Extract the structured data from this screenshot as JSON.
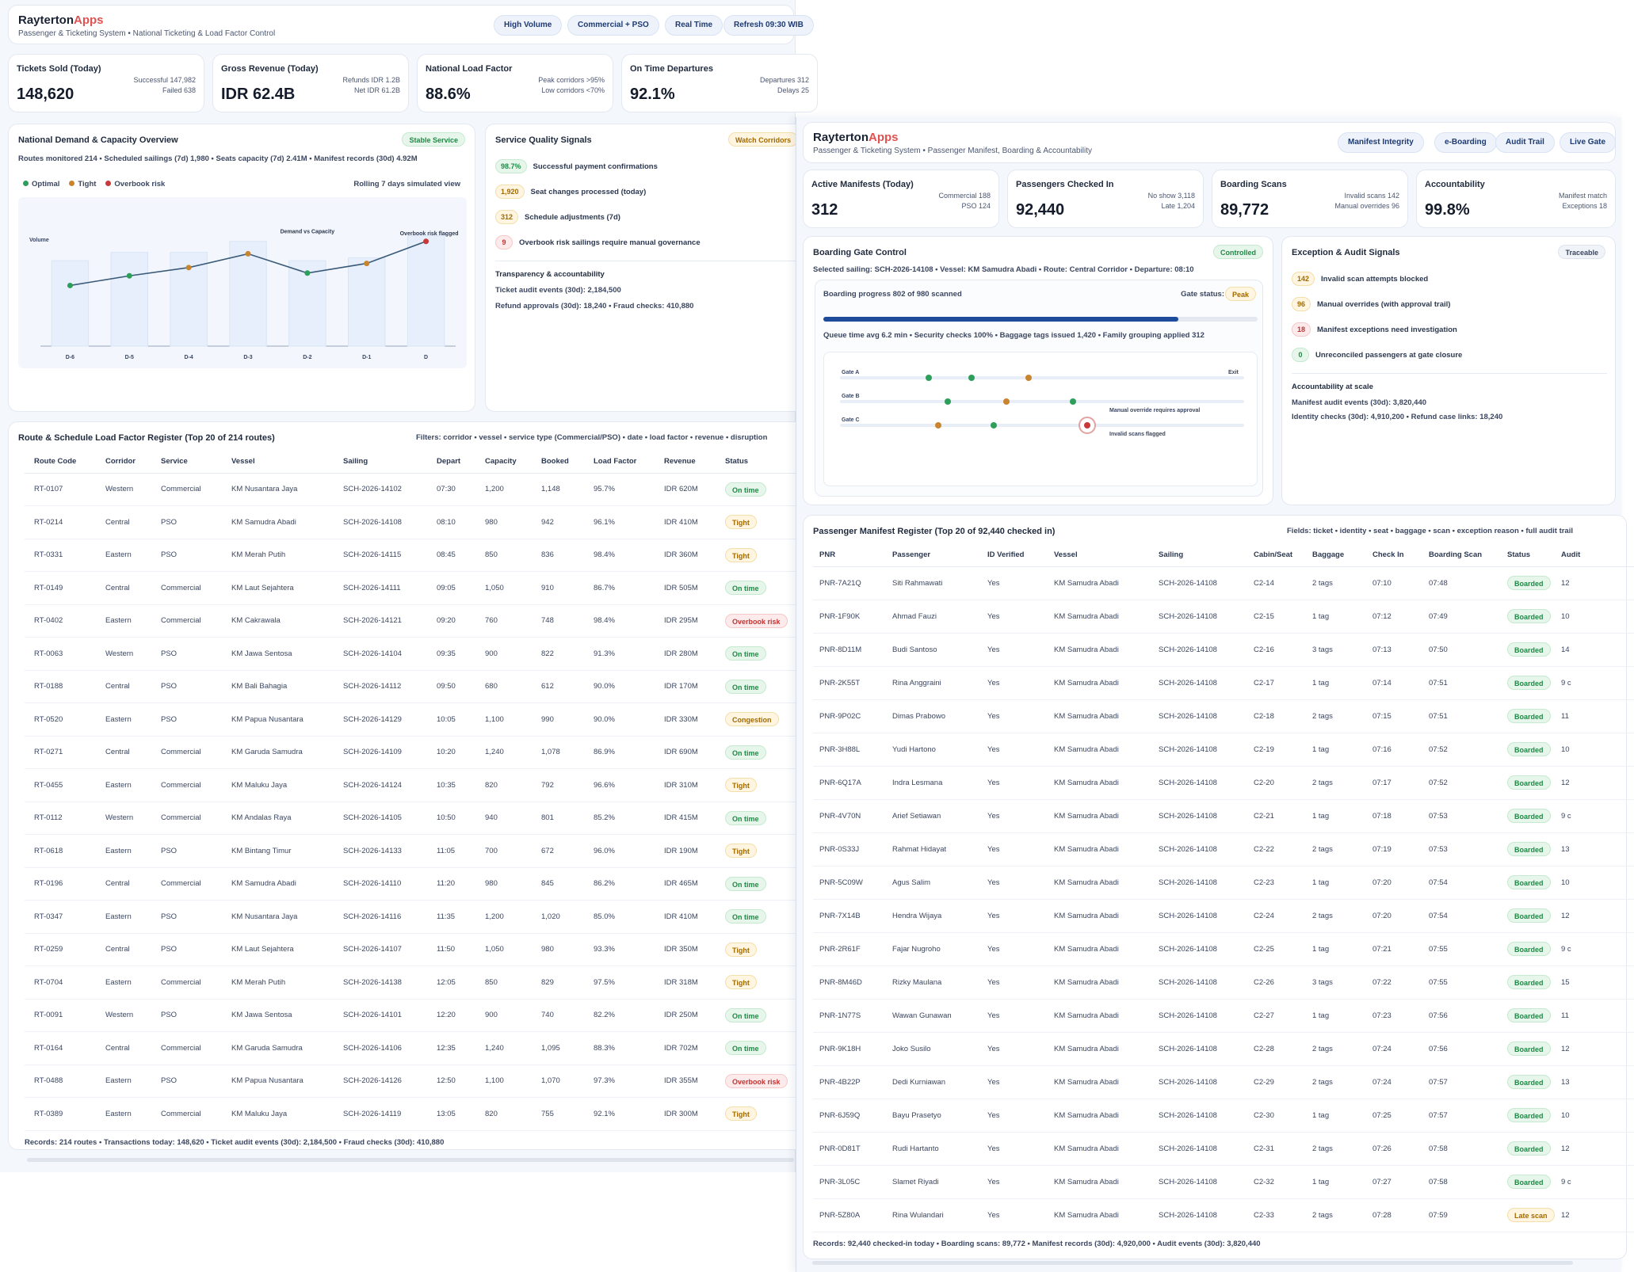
{
  "left": {
    "brand": {
      "name": "Rayterton",
      "accent": "Apps"
    },
    "subtitle": "Passenger & Ticketing System • National Ticketing & Load Factor Control",
    "chips": [
      "High Volume",
      "Commercial + PSO",
      "Real Time",
      "Refresh 09:30 WIB"
    ],
    "kpis": [
      {
        "label": "Tickets Sold (Today)",
        "value": "148,620",
        "meta1": "Successful 147,982",
        "meta2": "Failed 638"
      },
      {
        "label": "Gross Revenue (Today)",
        "value": "IDR 62.4B",
        "meta1": "Refunds IDR 1.2B",
        "meta2": "Net IDR 61.2B"
      },
      {
        "label": "National Load Factor",
        "value": "88.6%",
        "meta1": "Peak corridors >95%",
        "meta2": "Low corridors <70%"
      },
      {
        "label": "On Time Departures",
        "value": "92.1%",
        "meta1": "Departures 312",
        "meta2": "Delays 25"
      }
    ],
    "overview": {
      "title": "National Demand & Capacity Overview",
      "badge": "Stable Service",
      "meta": "Routes monitored 214 • Scheduled sailings (7d) 1,980 • Seats capacity (7d) 2.41M • Manifest records (30d) 4.92M",
      "legend": [
        "Optimal",
        "Tight",
        "Overbook risk"
      ],
      "rolling": "Rolling 7 days simulated view"
    },
    "chart_data": {
      "type": "bar",
      "title": "National Demand & Capacity Overview",
      "ylabel": "Volume",
      "categories": [
        "D-6",
        "D-5",
        "D-4",
        "D-3",
        "D-2",
        "D-1",
        "D"
      ],
      "series": [
        {
          "name": "Capacity",
          "values": [
            62,
            68,
            68,
            76,
            62,
            64,
            80
          ]
        },
        {
          "name": "Demand vs Capacity",
          "values": [
            44,
            51,
            57,
            67,
            53,
            60,
            76
          ]
        }
      ],
      "point_status": [
        "optimal",
        "optimal",
        "tight",
        "tight",
        "optimal",
        "tight",
        "overbook"
      ],
      "annotations": [
        "Demand vs Capacity",
        "Overbook risk flagged"
      ],
      "ylim": [
        0,
        100
      ],
      "colors": {
        "optimal": "#2e9e5b",
        "tight": "#c8842e",
        "overbook": "#c83a3a",
        "line": "#3a5a78",
        "bar": "#e6effb"
      }
    },
    "signals": {
      "title": "Service Quality Signals",
      "badge": "Watch Corridors",
      "items": [
        {
          "badge": "98.7%",
          "tone": "green",
          "text": "Successful payment confirmations"
        },
        {
          "badge": "1,920",
          "tone": "amber",
          "text": "Seat changes processed (today)"
        },
        {
          "badge": "312",
          "tone": "amber",
          "text": "Schedule adjustments (7d)"
        },
        {
          "badge": "9",
          "tone": "red",
          "text": "Overbook risk sailings require manual governance"
        }
      ],
      "transparency_title": "Transparency & accountability",
      "lines": [
        "Ticket audit events (30d): 2,184,500",
        "Refund approvals (30d): 18,240 • Fraud checks: 410,880"
      ]
    },
    "register": {
      "title": "Route & Schedule Load Factor Register (Top 20 of 214 routes)",
      "filters": "Filters: corridor • vessel • service type (Commercial/PSO) • date • load factor • revenue • disruption",
      "columns": [
        "Route Code",
        "Corridor",
        "Service",
        "Vessel",
        "Sailing",
        "Depart",
        "Capacity",
        "Booked",
        "Load Factor",
        "Revenue",
        "Status"
      ],
      "rows": [
        [
          "RT-0107",
          "Western",
          "Commercial",
          "KM Nusantara Jaya",
          "SCH-2026-14102",
          "07:30",
          "1,200",
          "1,148",
          "95.7%",
          "IDR 620M",
          "On time"
        ],
        [
          "RT-0214",
          "Central",
          "PSO",
          "KM Samudra Abadi",
          "SCH-2026-14108",
          "08:10",
          "980",
          "942",
          "96.1%",
          "IDR 410M",
          "Tight"
        ],
        [
          "RT-0331",
          "Eastern",
          "PSO",
          "KM Merah Putih",
          "SCH-2026-14115",
          "08:45",
          "850",
          "836",
          "98.4%",
          "IDR 360M",
          "Tight"
        ],
        [
          "RT-0149",
          "Central",
          "Commercial",
          "KM Laut Sejahtera",
          "SCH-2026-14111",
          "09:05",
          "1,050",
          "910",
          "86.7%",
          "IDR 505M",
          "On time"
        ],
        [
          "RT-0402",
          "Eastern",
          "Commercial",
          "KM Cakrawala",
          "SCH-2026-14121",
          "09:20",
          "760",
          "748",
          "98.4%",
          "IDR 295M",
          "Overbook risk"
        ],
        [
          "RT-0063",
          "Western",
          "PSO",
          "KM Jawa Sentosa",
          "SCH-2026-14104",
          "09:35",
          "900",
          "822",
          "91.3%",
          "IDR 280M",
          "On time"
        ],
        [
          "RT-0188",
          "Central",
          "PSO",
          "KM Bali Bahagia",
          "SCH-2026-14112",
          "09:50",
          "680",
          "612",
          "90.0%",
          "IDR 170M",
          "On time"
        ],
        [
          "RT-0520",
          "Eastern",
          "PSO",
          "KM Papua Nusantara",
          "SCH-2026-14129",
          "10:05",
          "1,100",
          "990",
          "90.0%",
          "IDR 330M",
          "Congestion"
        ],
        [
          "RT-0271",
          "Central",
          "Commercial",
          "KM Garuda Samudra",
          "SCH-2026-14109",
          "10:20",
          "1,240",
          "1,078",
          "86.9%",
          "IDR 690M",
          "On time"
        ],
        [
          "RT-0455",
          "Eastern",
          "Commercial",
          "KM Maluku Jaya",
          "SCH-2026-14124",
          "10:35",
          "820",
          "792",
          "96.6%",
          "IDR 310M",
          "Tight"
        ],
        [
          "RT-0112",
          "Western",
          "Commercial",
          "KM Andalas Raya",
          "SCH-2026-14105",
          "10:50",
          "940",
          "801",
          "85.2%",
          "IDR 415M",
          "On time"
        ],
        [
          "RT-0618",
          "Eastern",
          "PSO",
          "KM Bintang Timur",
          "SCH-2026-14133",
          "11:05",
          "700",
          "672",
          "96.0%",
          "IDR 190M",
          "Tight"
        ],
        [
          "RT-0196",
          "Central",
          "Commercial",
          "KM Samudra Abadi",
          "SCH-2026-14110",
          "11:20",
          "980",
          "845",
          "86.2%",
          "IDR 465M",
          "On time"
        ],
        [
          "RT-0347",
          "Eastern",
          "PSO",
          "KM Nusantara Jaya",
          "SCH-2026-14116",
          "11:35",
          "1,200",
          "1,020",
          "85.0%",
          "IDR 410M",
          "On time"
        ],
        [
          "RT-0259",
          "Central",
          "PSO",
          "KM Laut Sejahtera",
          "SCH-2026-14107",
          "11:50",
          "1,050",
          "980",
          "93.3%",
          "IDR 350M",
          "Tight"
        ],
        [
          "RT-0704",
          "Eastern",
          "Commercial",
          "KM Merah Putih",
          "SCH-2026-14138",
          "12:05",
          "850",
          "829",
          "97.5%",
          "IDR 318M",
          "Tight"
        ],
        [
          "RT-0091",
          "Western",
          "PSO",
          "KM Jawa Sentosa",
          "SCH-2026-14101",
          "12:20",
          "900",
          "740",
          "82.2%",
          "IDR 250M",
          "On time"
        ],
        [
          "RT-0164",
          "Central",
          "Commercial",
          "KM Garuda Samudra",
          "SCH-2026-14106",
          "12:35",
          "1,240",
          "1,095",
          "88.3%",
          "IDR 702M",
          "On time"
        ],
        [
          "RT-0488",
          "Eastern",
          "PSO",
          "KM Papua Nusantara",
          "SCH-2026-14126",
          "12:50",
          "1,100",
          "1,070",
          "97.3%",
          "IDR 355M",
          "Overbook risk"
        ],
        [
          "RT-0389",
          "Eastern",
          "Commercial",
          "KM Maluku Jaya",
          "SCH-2026-14119",
          "13:05",
          "820",
          "755",
          "92.1%",
          "IDR 300M",
          "Tight"
        ]
      ],
      "footer": "Records: 214 routes • Transactions today: 148,620 • Ticket audit events (30d): 2,184,500 • Fraud checks (30d): 410,880"
    }
  },
  "right": {
    "brand": {
      "name": "Rayterton",
      "accent": "Apps"
    },
    "subtitle": "Passenger & Ticketing System • Passenger Manifest, Boarding & Accountability",
    "chips": [
      "Manifest Integrity",
      "e-Boarding",
      "Audit Trail",
      "Live Gate"
    ],
    "kpis": [
      {
        "label": "Active Manifests (Today)",
        "value": "312",
        "meta1": "Commercial 188",
        "meta2": "PSO 124"
      },
      {
        "label": "Passengers Checked In",
        "value": "92,440",
        "meta1": "No show 3,118",
        "meta2": "Late 1,204"
      },
      {
        "label": "Boarding Scans",
        "value": "89,772",
        "meta1": "Invalid scans 142",
        "meta2": "Manual overrides 96"
      },
      {
        "label": "Accountability",
        "value": "99.8%",
        "meta1": "Manifest match",
        "meta2": "Exceptions 18"
      }
    ],
    "gate": {
      "title": "Boarding Gate Control",
      "badge": "Controlled",
      "meta": "Selected sailing: SCH-2026-14108 • Vessel: KM Samudra Abadi • Route: Central Corridor • Departure: 08:10",
      "progress_text": "Boarding progress 802 of 980 scanned",
      "progress_value": 0.818,
      "status_label": "Gate status:",
      "status_value": "Peak",
      "queue": "Queue time avg 6.2 min • Security checks 100% • Baggage tags issued 1,420 • Family grouping applied 312",
      "lanes": [
        "Gate A",
        "Gate B",
        "Gate C"
      ],
      "exit_label": "Exit",
      "note_override": "Manual override requires approval",
      "note_invalid": "Invalid scans flagged"
    },
    "exceptions": {
      "title": "Exception & Audit Signals",
      "badge": "Traceable",
      "items": [
        {
          "badge": "142",
          "tone": "amber",
          "text": "Invalid scan attempts blocked"
        },
        {
          "badge": "96",
          "tone": "amber",
          "text": "Manual overrides (with approval trail)"
        },
        {
          "badge": "18",
          "tone": "red",
          "text": "Manifest exceptions need investigation"
        },
        {
          "badge": "0",
          "tone": "green",
          "text": "Unreconciled passengers at gate closure"
        }
      ],
      "scale_title": "Accountability at scale",
      "lines": [
        "Manifest audit events (30d): 3,820,440",
        "Identity checks (30d): 4,910,200 • Refund case links: 18,240"
      ]
    },
    "manifest": {
      "title": "Passenger Manifest Register (Top 20 of 92,440 checked in)",
      "fields": "Fields: ticket • identity • seat • baggage • scan • exception reason • full audit trail",
      "columns": [
        "PNR",
        "Passenger",
        "ID Verified",
        "Vessel",
        "Sailing",
        "Cabin/Seat",
        "Baggage",
        "Check In",
        "Boarding Scan",
        "Status",
        "Audit"
      ],
      "rows": [
        [
          "PNR-7A21Q",
          "Siti Rahmawati",
          "Yes",
          "KM Samudra Abadi",
          "SCH-2026-14108",
          "C2-14",
          "2 tags",
          "07:10",
          "07:48",
          "Boarded",
          "12"
        ],
        [
          "PNR-1F90K",
          "Ahmad Fauzi",
          "Yes",
          "KM Samudra Abadi",
          "SCH-2026-14108",
          "C2-15",
          "1 tag",
          "07:12",
          "07:49",
          "Boarded",
          "10"
        ],
        [
          "PNR-8D11M",
          "Budi Santoso",
          "Yes",
          "KM Samudra Abadi",
          "SCH-2026-14108",
          "C2-16",
          "3 tags",
          "07:13",
          "07:50",
          "Boarded",
          "14"
        ],
        [
          "PNR-2K55T",
          "Rina Anggraini",
          "Yes",
          "KM Samudra Abadi",
          "SCH-2026-14108",
          "C2-17",
          "1 tag",
          "07:14",
          "07:51",
          "Boarded",
          "9 c"
        ],
        [
          "PNR-9P02C",
          "Dimas Prabowo",
          "Yes",
          "KM Samudra Abadi",
          "SCH-2026-14108",
          "C2-18",
          "2 tags",
          "07:15",
          "07:51",
          "Boarded",
          "11"
        ],
        [
          "PNR-3H88L",
          "Yudi Hartono",
          "Yes",
          "KM Samudra Abadi",
          "SCH-2026-14108",
          "C2-19",
          "1 tag",
          "07:16",
          "07:52",
          "Boarded",
          "10"
        ],
        [
          "PNR-6Q17A",
          "Indra Lesmana",
          "Yes",
          "KM Samudra Abadi",
          "SCH-2026-14108",
          "C2-20",
          "2 tags",
          "07:17",
          "07:52",
          "Boarded",
          "12"
        ],
        [
          "PNR-4V70N",
          "Arief Setiawan",
          "Yes",
          "KM Samudra Abadi",
          "SCH-2026-14108",
          "C2-21",
          "1 tag",
          "07:18",
          "07:53",
          "Boarded",
          "9 c"
        ],
        [
          "PNR-0S33J",
          "Rahmat Hidayat",
          "Yes",
          "KM Samudra Abadi",
          "SCH-2026-14108",
          "C2-22",
          "2 tags",
          "07:19",
          "07:53",
          "Boarded",
          "13"
        ],
        [
          "PNR-5C09W",
          "Agus Salim",
          "Yes",
          "KM Samudra Abadi",
          "SCH-2026-14108",
          "C2-23",
          "1 tag",
          "07:20",
          "07:54",
          "Boarded",
          "10"
        ],
        [
          "PNR-7X14B",
          "Hendra Wijaya",
          "Yes",
          "KM Samudra Abadi",
          "SCH-2026-14108",
          "C2-24",
          "2 tags",
          "07:20",
          "07:54",
          "Boarded",
          "12"
        ],
        [
          "PNR-2R61F",
          "Fajar Nugroho",
          "Yes",
          "KM Samudra Abadi",
          "SCH-2026-14108",
          "C2-25",
          "1 tag",
          "07:21",
          "07:55",
          "Boarded",
          "9 c"
        ],
        [
          "PNR-8M46D",
          "Rizky Maulana",
          "Yes",
          "KM Samudra Abadi",
          "SCH-2026-14108",
          "C2-26",
          "3 tags",
          "07:22",
          "07:55",
          "Boarded",
          "15"
        ],
        [
          "PNR-1N77S",
          "Wawan Gunawan",
          "Yes",
          "KM Samudra Abadi",
          "SCH-2026-14108",
          "C2-27",
          "1 tag",
          "07:23",
          "07:56",
          "Boarded",
          "11"
        ],
        [
          "PNR-9K18H",
          "Joko Susilo",
          "Yes",
          "KM Samudra Abadi",
          "SCH-2026-14108",
          "C2-28",
          "2 tags",
          "07:24",
          "07:56",
          "Boarded",
          "12"
        ],
        [
          "PNR-4B22P",
          "Dedi Kurniawan",
          "Yes",
          "KM Samudra Abadi",
          "SCH-2026-14108",
          "C2-29",
          "2 tags",
          "07:24",
          "07:57",
          "Boarded",
          "13"
        ],
        [
          "PNR-6J59Q",
          "Bayu Prasetyo",
          "Yes",
          "KM Samudra Abadi",
          "SCH-2026-14108",
          "C2-30",
          "1 tag",
          "07:25",
          "07:57",
          "Boarded",
          "10"
        ],
        [
          "PNR-0D81T",
          "Rudi Hartanto",
          "Yes",
          "KM Samudra Abadi",
          "SCH-2026-14108",
          "C2-31",
          "2 tags",
          "07:26",
          "07:58",
          "Boarded",
          "12"
        ],
        [
          "PNR-3L05C",
          "Slamet Riyadi",
          "Yes",
          "KM Samudra Abadi",
          "SCH-2026-14108",
          "C2-32",
          "1 tag",
          "07:27",
          "07:58",
          "Boarded",
          "9 c"
        ],
        [
          "PNR-5Z80A",
          "Rina Wulandari",
          "Yes",
          "KM Samudra Abadi",
          "SCH-2026-14108",
          "C2-33",
          "2 tags",
          "07:28",
          "07:59",
          "Late scan",
          "12"
        ]
      ],
      "footer": "Records: 92,440 checked-in today • Boarding scans: 89,772 • Manifest records (30d): 4,920,000 • Audit events (30d): 3,820,440"
    }
  }
}
